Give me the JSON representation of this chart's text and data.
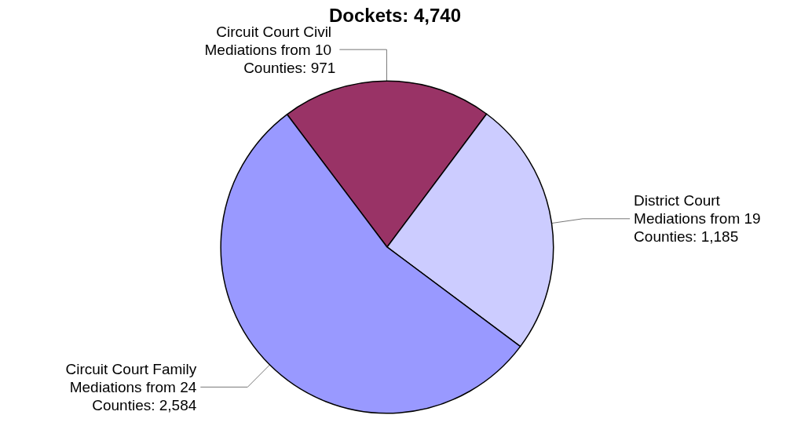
{
  "chart_data": {
    "type": "pie",
    "title": "Dockets: 4,740",
    "categories": [
      "Circuit Court Civil Mediations from 10 Counties",
      "District Court Mediations from 19 Counties",
      "Circuit Court Family Mediations from 24 Counties"
    ],
    "values": [
      971,
      1185,
      2584
    ],
    "value_labels": [
      "971",
      "1,185",
      "2,584"
    ],
    "colors": [
      "#993366",
      "#ccccff",
      "#9999ff"
    ],
    "legend": false
  }
}
